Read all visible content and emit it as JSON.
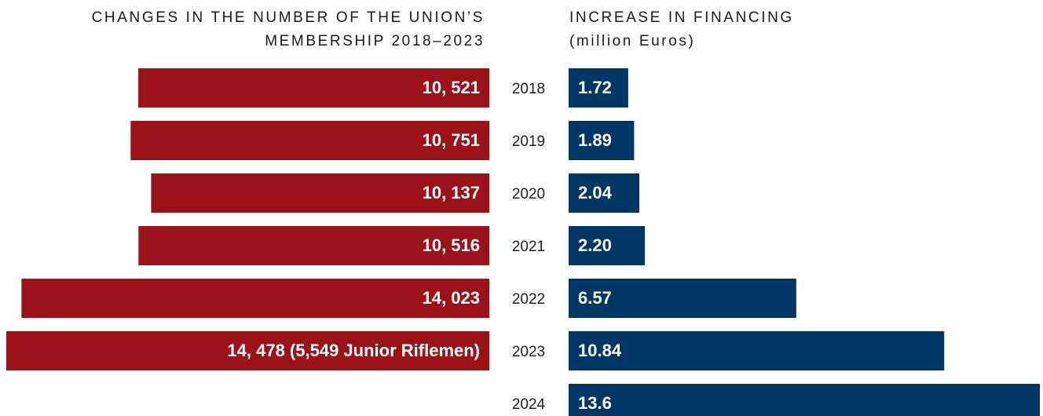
{
  "chart_data": [
    {
      "type": "bar",
      "title": "CHANGES IN THE NUMBER OF THE UNION’S MEMBERSHIP 2018–2023",
      "values": [
        10521,
        10751,
        10137,
        10516,
        14023,
        14478
      ],
      "value_labels": [
        "10, 521",
        "10, 751",
        "10, 137",
        "10, 516",
        "14, 023",
        "14, 478 (5,549 Junior Riflemen)"
      ],
      "color": "#9b1219"
    },
    {
      "type": "bar",
      "title": "INCREASE IN FINANCING",
      "subtitle": "(million Euros)",
      "categories": [
        "2018",
        "2019",
        "2020",
        "2021",
        "2022",
        "2023",
        "2024"
      ],
      "values": [
        1.72,
        1.89,
        2.04,
        2.2,
        6.57,
        10.84,
        13.6
      ],
      "value_labels": [
        "1.72",
        "1.89",
        "2.04",
        "2.20",
        "6.57",
        "10.84",
        "13.6"
      ],
      "color": "#003764"
    }
  ]
}
